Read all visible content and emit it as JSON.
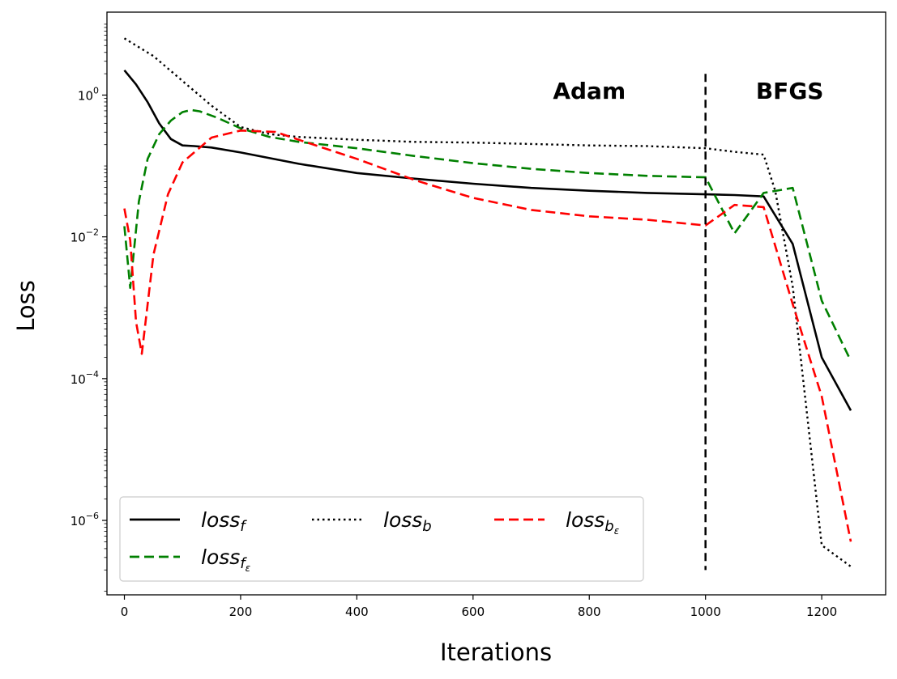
{
  "chart_data": {
    "type": "line",
    "xlabel": "Iterations",
    "ylabel": "Loss",
    "xlim": [
      -30,
      1310
    ],
    "ylim_log10": [
      -7.05,
      1.17
    ],
    "y_scale": "log",
    "xticks": [
      0,
      200,
      400,
      600,
      800,
      1000,
      1200
    ],
    "xtick_labels": [
      "0",
      "200",
      "400",
      "600",
      "800",
      "1000",
      "1200"
    ],
    "yticks_log10": [
      0,
      -2,
      -4,
      -6
    ],
    "ytick_bases": [
      "10",
      "10",
      "10",
      "10"
    ],
    "ytick_exponents": [
      "0",
      "−2",
      "−4",
      "−6"
    ],
    "grid": false,
    "legend_position": "lower-left",
    "annotations": [
      {
        "text": "Adam",
        "x": 800,
        "log10y": -0.05
      },
      {
        "text": "BFGS",
        "x": 1145,
        "log10y": -0.05
      }
    ],
    "vline": {
      "x": 1000,
      "log10y_range": [
        -6.7,
        0.3
      ],
      "style": "dashed"
    },
    "series": [
      {
        "name": "loss",
        "subscript": "f",
        "color": "#000000",
        "dash": "solid",
        "x": [
          0,
          20,
          40,
          60,
          80,
          100,
          120,
          150,
          200,
          300,
          400,
          500,
          600,
          700,
          800,
          900,
          1000,
          1050,
          1100,
          1150,
          1200,
          1250
        ],
        "log10y": [
          0.35,
          0.15,
          -0.1,
          -0.4,
          -0.62,
          -0.71,
          -0.72,
          -0.74,
          -0.81,
          -0.97,
          -1.1,
          -1.18,
          -1.25,
          -1.31,
          -1.35,
          -1.38,
          -1.4,
          -1.41,
          -1.43,
          -2.1,
          -3.7,
          -4.45
        ]
      },
      {
        "name": "loss",
        "subscript": "f_ε",
        "color": "#008000",
        "dash": "dashed",
        "x": [
          0,
          10,
          25,
          40,
          60,
          80,
          100,
          115,
          130,
          160,
          200,
          250,
          300,
          400,
          500,
          600,
          700,
          800,
          900,
          1000,
          1050,
          1100,
          1150,
          1200,
          1250
        ],
        "log10y": [
          -1.85,
          -2.72,
          -1.5,
          -0.9,
          -0.55,
          -0.36,
          -0.24,
          -0.21,
          -0.23,
          -0.32,
          -0.47,
          -0.59,
          -0.66,
          -0.75,
          -0.86,
          -0.96,
          -1.04,
          -1.1,
          -1.14,
          -1.16,
          -1.95,
          -1.38,
          -1.31,
          -2.9,
          -3.75
        ]
      },
      {
        "name": "loss",
        "subscript": "b",
        "color": "#000000",
        "dash": "dotted",
        "x": [
          0,
          50,
          100,
          150,
          200,
          250,
          300,
          400,
          500,
          600,
          700,
          800,
          900,
          1000,
          1050,
          1100,
          1120,
          1150,
          1200,
          1250
        ],
        "log10y": [
          0.8,
          0.55,
          0.2,
          -0.15,
          -0.45,
          -0.55,
          -0.59,
          -0.63,
          -0.66,
          -0.67,
          -0.69,
          -0.71,
          -0.72,
          -0.75,
          -0.8,
          -0.84,
          -1.35,
          -2.7,
          -6.35,
          -6.65
        ]
      },
      {
        "name": "loss",
        "subscript": "b_ε",
        "color": "#ff0000",
        "dash": "dashed",
        "x": [
          0,
          10,
          20,
          30,
          50,
          75,
          100,
          150,
          200,
          260,
          300,
          400,
          500,
          600,
          700,
          800,
          900,
          1000,
          1050,
          1100,
          1150,
          1200,
          1250
        ],
        "log10y": [
          -1.6,
          -2.05,
          -3.2,
          -3.65,
          -2.25,
          -1.4,
          -0.95,
          -0.6,
          -0.5,
          -0.52,
          -0.63,
          -0.9,
          -1.2,
          -1.45,
          -1.62,
          -1.71,
          -1.76,
          -1.84,
          -1.55,
          -1.58,
          -2.95,
          -4.25,
          -6.3
        ]
      }
    ]
  }
}
